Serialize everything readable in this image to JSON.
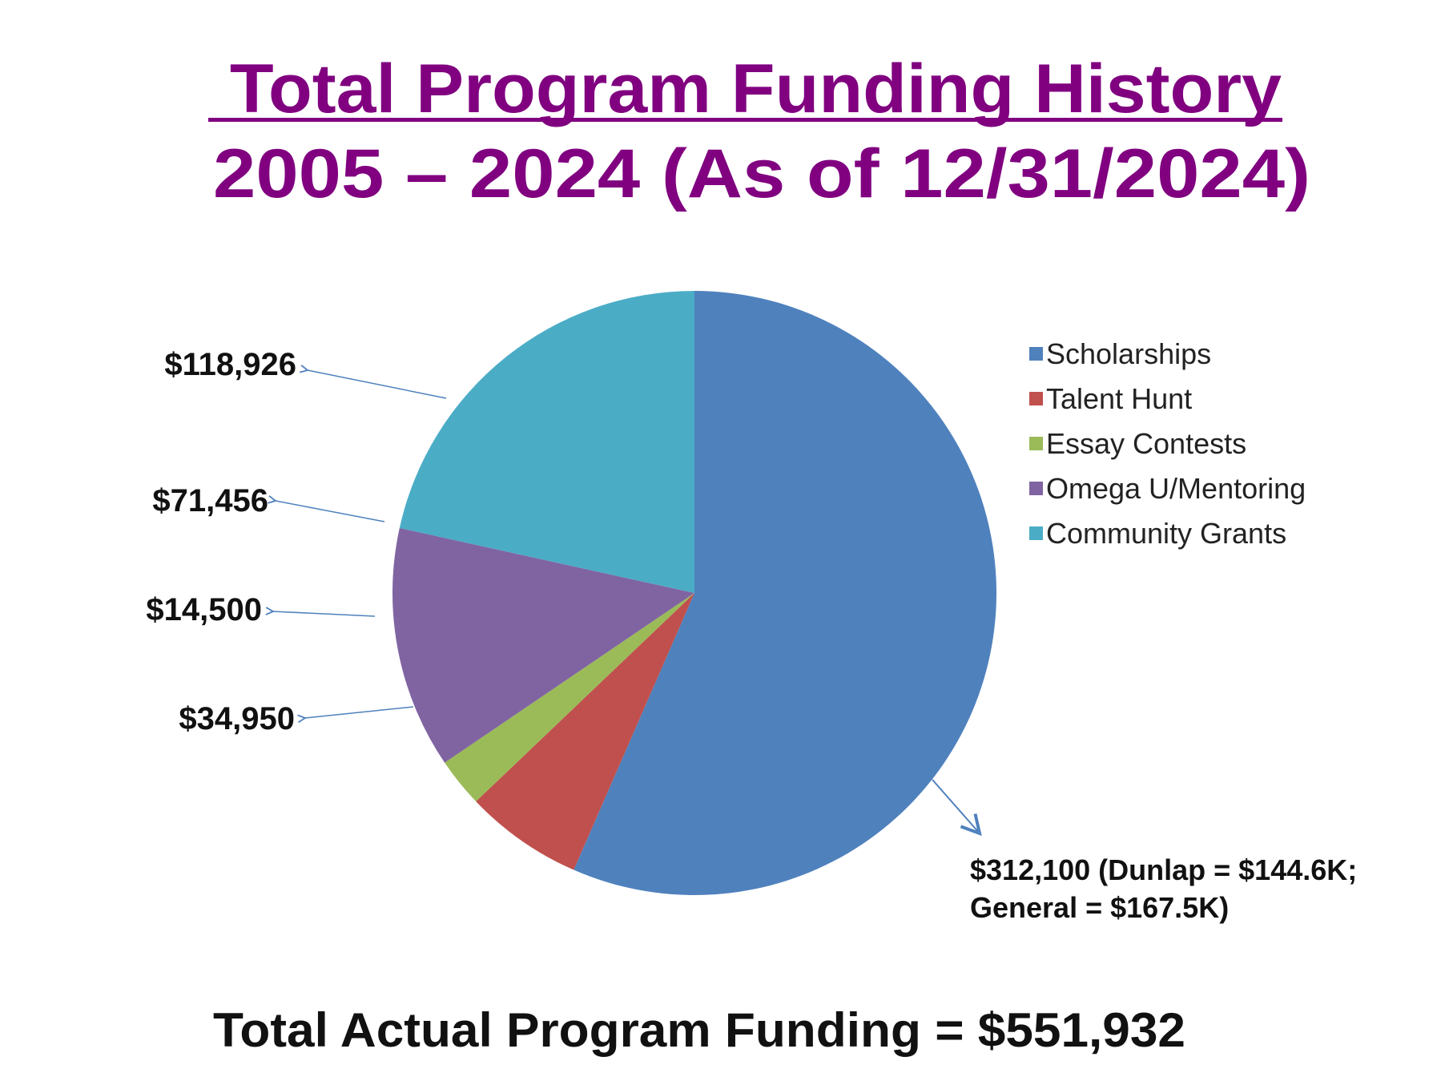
{
  "chart_data": {
    "type": "pie",
    "title_line1": " Total Program Funding History",
    "title_line2": "2005 – 2024 (As of 12/31/2024)",
    "footer": "Total Actual Program Funding = $551,932",
    "legend_position": "right",
    "slices": [
      {
        "name": "Scholarships",
        "value": 312100,
        "color": "#4F81BD",
        "label_line1": "$312,100 (Dunlap = $144.6K;",
        "label_line2": "General = $167.5K)"
      },
      {
        "name": "Talent Hunt",
        "value": 34950,
        "color": "#C0504D",
        "label_line1": "$34,950"
      },
      {
        "name": "Essay Contests",
        "value": 14500,
        "color": "#9BBB59",
        "label_line1": "$14,500"
      },
      {
        "name": "Omega U/Mentoring",
        "value": 71456,
        "color": "#8064A2",
        "label_line1": "$71,456"
      },
      {
        "name": "Community Grants",
        "value": 118926,
        "color": "#4BACC6",
        "label_line1": "$118,926"
      }
    ]
  }
}
